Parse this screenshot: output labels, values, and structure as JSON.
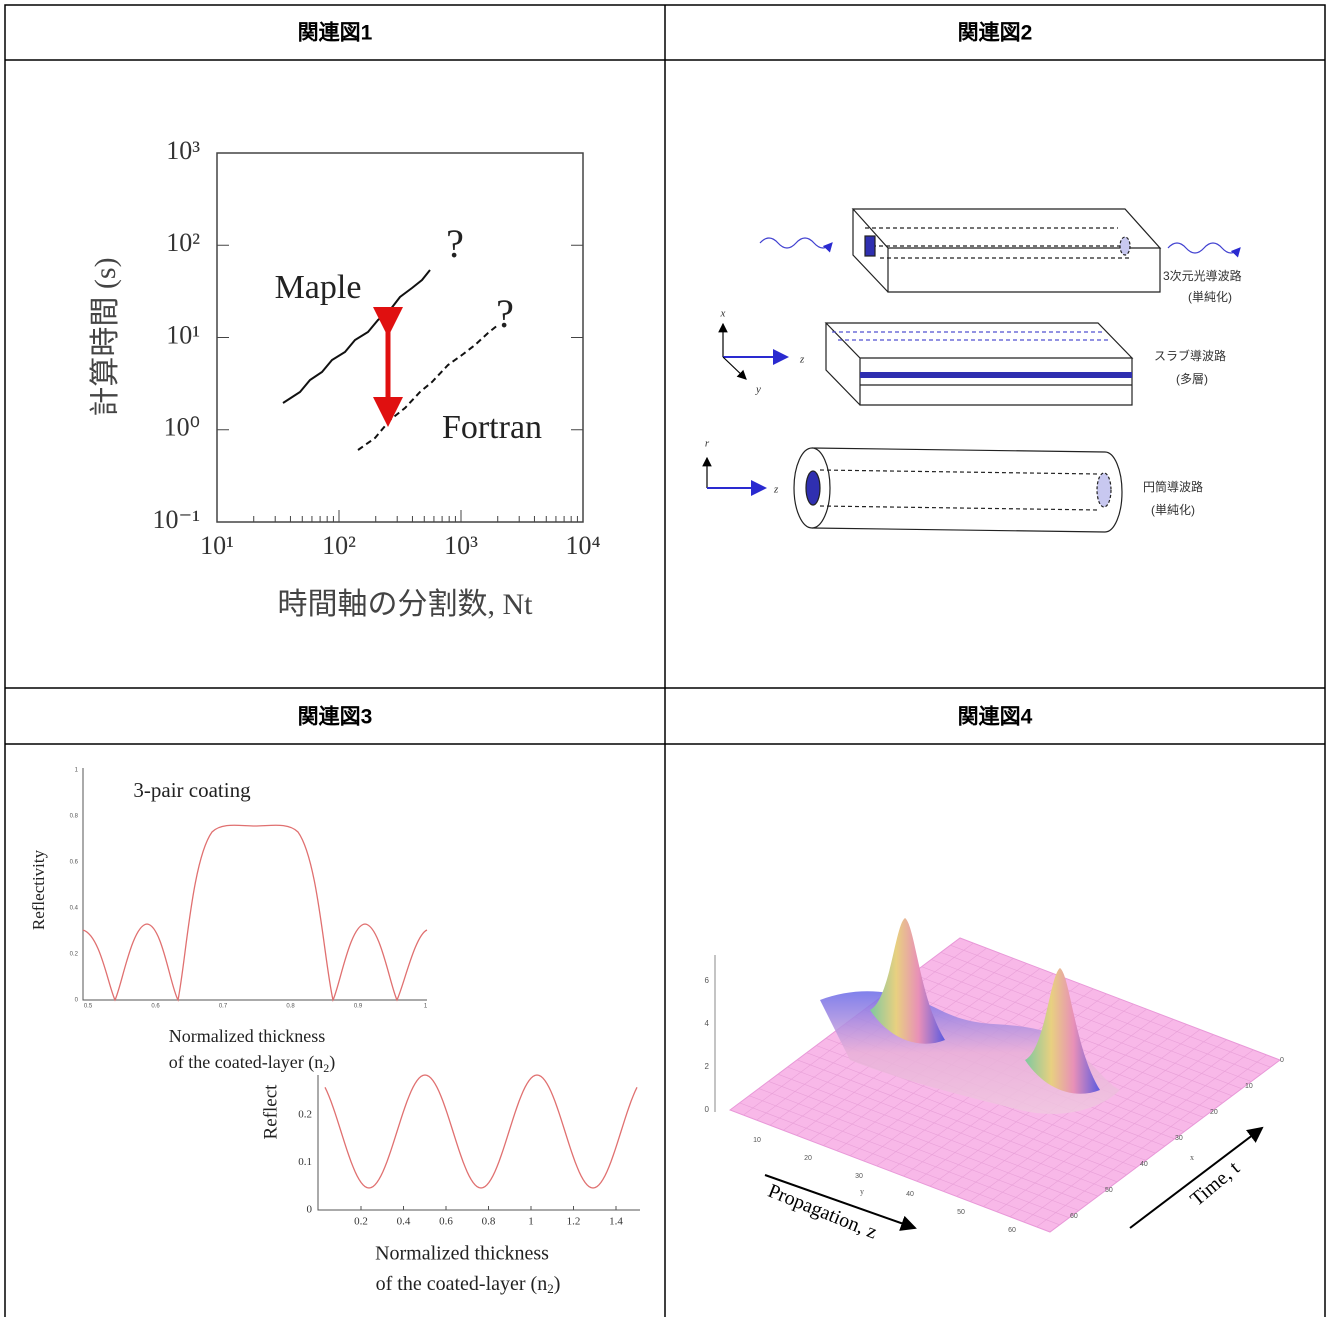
{
  "table": {
    "headers": [
      "関連図1",
      "関連図2",
      "関連図3",
      "関連図4"
    ]
  },
  "figure1": {
    "y_label": "計算時間 (s)",
    "x_label": "時間軸の分割数, Nt",
    "y_ticks": [
      "10³",
      "10²",
      "10¹",
      "10⁰",
      "10⁻¹"
    ],
    "x_ticks": [
      "10¹",
      "10²",
      "10³",
      "10⁴"
    ],
    "annotations": [
      "Maple",
      "Fortran",
      "?",
      "?"
    ]
  },
  "figure2": {
    "labels": [
      "3次元光導波路",
      "(単純化)",
      "スラブ導波路",
      "(多層)",
      "円筒導波路",
      "(単純化)"
    ],
    "axes": [
      "x",
      "z",
      "y",
      "r",
      "z"
    ]
  },
  "figure3": {
    "title": "3-pair coating",
    "y_label": "Reflectivity",
    "x_label_1": "Normalized thickness",
    "x_label_2": "of the coated-layer (n",
    "x_label_sub": "2",
    "x_label_end": ")",
    "y_ticks": [
      "0",
      "0.2",
      "0.4",
      "0.6",
      "0.8",
      "1"
    ],
    "x_ticks": [
      "0.5",
      "0.6",
      "0.7",
      "0.8",
      "0.9",
      "1"
    ],
    "inset": {
      "y_label": "Reflect",
      "y_ticks": [
        "0.2",
        "0.1",
        "0"
      ],
      "x_ticks": [
        "0.2",
        "0.4",
        "0.6",
        "0.8",
        "1",
        "1.2",
        "1.4"
      ],
      "x_label_1": "Normalized thickness",
      "x_label_2": "of the coated-layer (n",
      "x_label_sub": "2",
      "x_label_end": ")"
    }
  },
  "figure4": {
    "x_label": "Propagation, z",
    "y_label": "Time, t",
    "height_ticks": [
      "0",
      "2",
      "4",
      "6"
    ],
    "z_ticks": [
      "10",
      "20",
      "30",
      "40",
      "50",
      "60"
    ],
    "t_ticks": [
      "0",
      "10",
      "20",
      "30",
      "40",
      "50",
      "60"
    ],
    "axis_letters": [
      "y",
      "x"
    ]
  }
}
